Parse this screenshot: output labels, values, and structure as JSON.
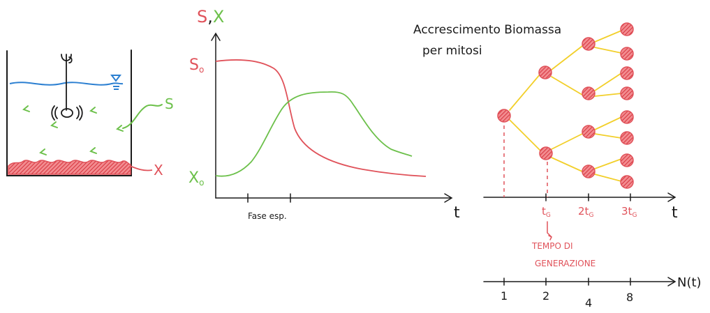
{
  "panel_reactor": {
    "substrate_label": "S",
    "biomass_label": "X",
    "colors": {
      "water": "#2b7fd1",
      "substrate": "#6cc04a",
      "biomass": "#e0525a",
      "ink": "#1a1a1a"
    }
  },
  "panel_curve": {
    "y_axis_label_s": "S",
    "y_axis_label_sep": ",",
    "y_axis_label_x": "X",
    "s0_label": "S",
    "s0_sub": "o",
    "x0_label": "X",
    "x0_sub": "o",
    "x_axis_label": "t",
    "phase_label": "Fase esp.",
    "series": [
      {
        "label": "S",
        "color": "#e0525a"
      },
      {
        "label": "X",
        "color": "#6cc04a"
      }
    ]
  },
  "panel_tree": {
    "title_line1": "Accrescimento Biomassa",
    "title_line2": "per mitosi",
    "x_axis_label": "t",
    "ticks": [
      "t",
      "2t",
      "3t"
    ],
    "tick_sub": "G",
    "generation_line1": "TEMPO DI",
    "generation_line2": "GENERAZIONE",
    "n_axis_label": "N(t)",
    "n_values": [
      "1",
      "2",
      "4",
      "8"
    ],
    "colors": {
      "cell": "#e0525a",
      "branch": "#f2cf2a"
    }
  }
}
